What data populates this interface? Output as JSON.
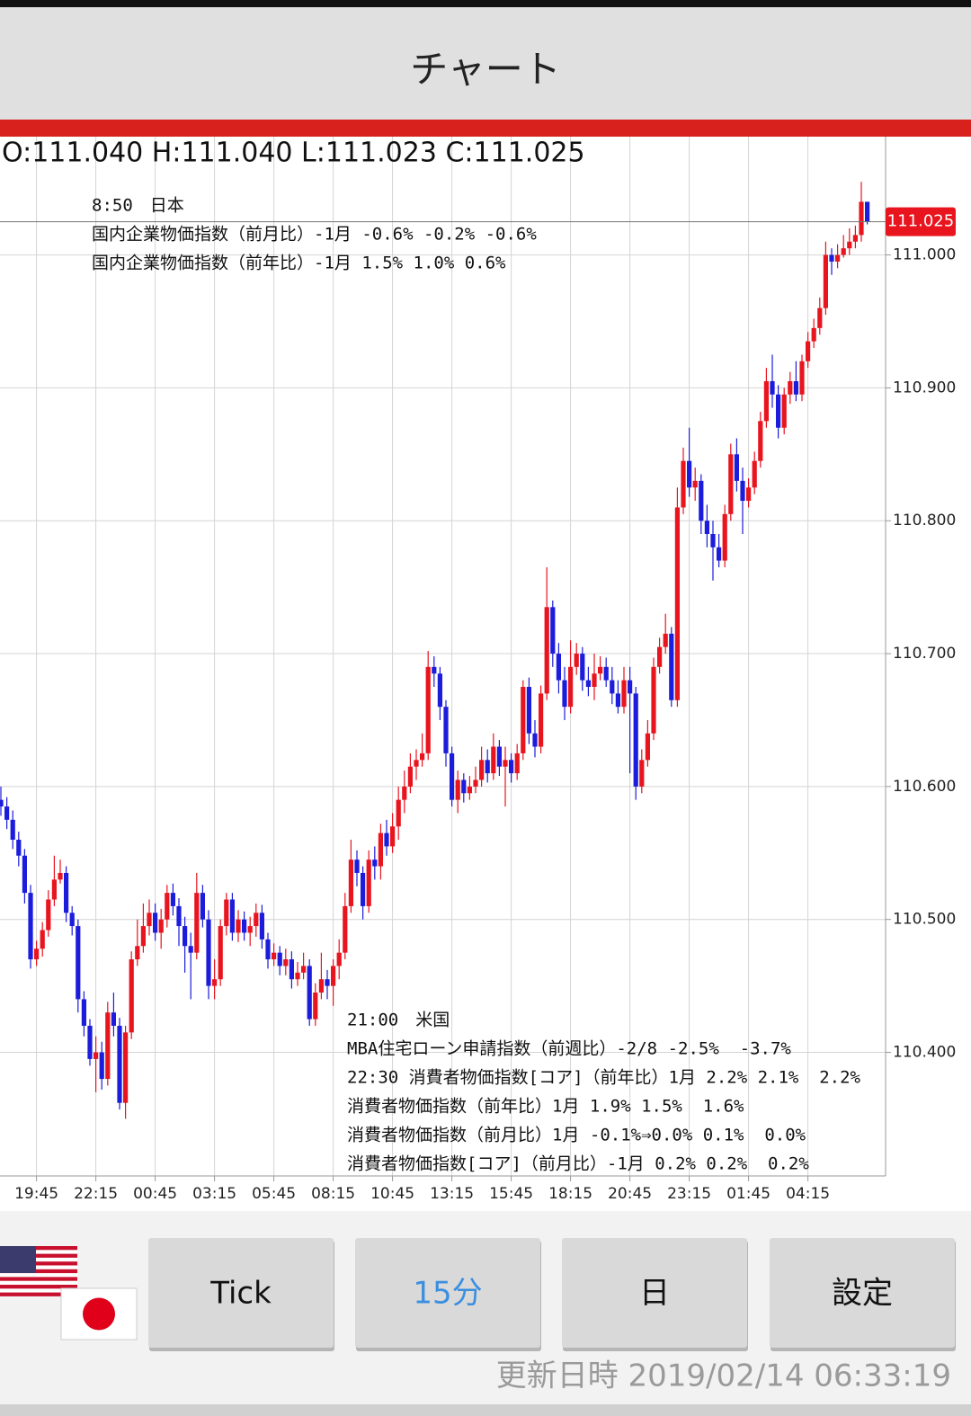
{
  "app": {
    "title": "チャート",
    "buttons": [
      "Tick",
      "15分",
      "日",
      "設定"
    ],
    "updated": "更新日時 2019/02/14 06:33:19"
  },
  "chart_data": {
    "type": "candlestick",
    "ohlc_header": "O:111.040 H:111.040 L:111.023 C:111.025",
    "up_color": "#e8141e",
    "down_color": "#1c1cdc",
    "grid": true,
    "ylim": [
      110.307,
      111.089
    ],
    "yticks": [
      {
        "value": 110.4,
        "label": "110.400"
      },
      {
        "value": 110.5,
        "label": "110.500"
      },
      {
        "value": 110.6,
        "label": "110.600"
      },
      {
        "value": 110.7,
        "label": "110.700"
      },
      {
        "value": 110.8,
        "label": "110.800"
      },
      {
        "value": 110.9,
        "label": "110.900"
      },
      {
        "value": 111.0,
        "label": "111.000"
      }
    ],
    "categories": [
      null,
      null,
      null,
      null,
      null,
      null,
      "19:45",
      null,
      null,
      null,
      null,
      null,
      null,
      null,
      null,
      null,
      "22:15",
      null,
      null,
      null,
      null,
      null,
      null,
      null,
      null,
      null,
      "00:45",
      null,
      null,
      null,
      null,
      null,
      null,
      null,
      null,
      null,
      "03:15",
      null,
      null,
      null,
      null,
      null,
      null,
      null,
      null,
      null,
      "05:45",
      null,
      null,
      null,
      null,
      null,
      null,
      null,
      null,
      null,
      "08:15",
      null,
      null,
      null,
      null,
      null,
      null,
      null,
      null,
      null,
      "10:45",
      null,
      null,
      null,
      null,
      null,
      null,
      null,
      null,
      null,
      "13:15",
      null,
      null,
      null,
      null,
      null,
      null,
      null,
      null,
      null,
      "15:45",
      null,
      null,
      null,
      null,
      null,
      null,
      null,
      null,
      null,
      "18:15",
      null,
      null,
      null,
      null,
      null,
      null,
      null,
      null,
      null,
      "20:45",
      null,
      null,
      null,
      null,
      null,
      null,
      null,
      null,
      null,
      "23:15",
      null,
      null,
      null,
      null,
      null,
      null,
      null,
      null,
      null,
      "01:45",
      null,
      null,
      null,
      null,
      null,
      null,
      null,
      null,
      null,
      "04:15",
      null,
      null,
      null,
      null,
      null,
      null,
      null,
      null,
      null,
      null
    ],
    "open": [
      110.59,
      110.585,
      110.575,
      110.56,
      110.548,
      110.52,
      110.47,
      110.478,
      110.492,
      110.515,
      110.53,
      110.535,
      110.505,
      110.495,
      110.44,
      110.42,
      110.395,
      110.4,
      110.38,
      110.43,
      110.42,
      110.362,
      110.415,
      110.47,
      110.48,
      110.495,
      110.505,
      110.49,
      110.5,
      110.52,
      110.51,
      110.495,
      110.48,
      110.475,
      110.52,
      110.5,
      110.45,
      110.455,
      110.495,
      110.515,
      110.49,
      110.5,
      110.49,
      110.495,
      110.505,
      110.485,
      110.47,
      110.475,
      110.465,
      110.47,
      110.455,
      110.46,
      110.465,
      110.425,
      110.445,
      110.455,
      110.45,
      110.465,
      110.475,
      110.51,
      110.545,
      110.535,
      110.51,
      110.545,
      110.54,
      110.565,
      110.555,
      110.57,
      110.59,
      110.6,
      110.615,
      110.62,
      110.625,
      110.69,
      110.685,
      110.66,
      110.625,
      110.59,
      110.605,
      110.595,
      110.6,
      110.605,
      110.62,
      110.61,
      110.63,
      110.615,
      110.62,
      110.61,
      110.625,
      110.675,
      110.64,
      110.63,
      110.67,
      110.735,
      110.7,
      110.68,
      110.66,
      110.69,
      110.7,
      110.68,
      110.675,
      110.685,
      110.69,
      110.68,
      110.67,
      110.66,
      110.68,
      110.67,
      110.6,
      110.62,
      110.64,
      110.69,
      110.705,
      110.715,
      110.665,
      110.81,
      110.845,
      110.825,
      110.83,
      110.8,
      110.79,
      110.78,
      110.77,
      110.805,
      110.85,
      110.83,
      110.815,
      110.825,
      110.845,
      110.875,
      110.905,
      110.895,
      110.87,
      110.895,
      110.905,
      110.895,
      110.92,
      110.935,
      110.945,
      110.96,
      111.0,
      110.995,
      111.0,
      111.005,
      111.01,
      111.015,
      111.04
    ],
    "high": [
      110.6,
      110.592,
      110.582,
      110.566,
      110.553,
      110.526,
      110.484,
      110.498,
      110.522,
      110.548,
      110.545,
      110.54,
      110.51,
      110.5,
      110.446,
      110.425,
      110.412,
      110.408,
      110.438,
      110.445,
      110.426,
      110.42,
      110.476,
      110.5,
      110.512,
      110.515,
      110.512,
      110.508,
      110.526,
      110.527,
      110.516,
      110.502,
      110.49,
      110.535,
      110.526,
      110.507,
      110.47,
      110.5,
      110.52,
      110.52,
      110.507,
      110.506,
      110.502,
      110.512,
      110.511,
      110.49,
      110.482,
      110.48,
      110.478,
      110.476,
      110.468,
      110.475,
      110.47,
      110.452,
      110.475,
      110.462,
      110.47,
      110.485,
      110.52,
      110.56,
      110.552,
      110.54,
      110.552,
      110.555,
      110.572,
      110.575,
      110.58,
      110.6,
      110.612,
      110.625,
      110.628,
      110.64,
      110.702,
      110.698,
      110.69,
      110.665,
      110.63,
      110.612,
      110.61,
      110.608,
      110.615,
      110.63,
      110.628,
      110.64,
      110.635,
      110.63,
      110.625,
      110.632,
      110.68,
      110.682,
      110.65,
      110.676,
      110.765,
      110.74,
      110.708,
      110.69,
      110.71,
      110.708,
      110.705,
      110.69,
      110.7,
      110.698,
      110.697,
      110.69,
      110.68,
      110.69,
      110.69,
      110.675,
      110.628,
      110.65,
      110.697,
      110.712,
      110.73,
      110.72,
      110.825,
      110.855,
      110.87,
      110.84,
      110.835,
      110.812,
      110.8,
      110.79,
      110.812,
      110.858,
      110.862,
      110.84,
      110.832,
      110.852,
      110.882,
      110.915,
      110.925,
      110.902,
      110.9,
      110.912,
      110.92,
      110.925,
      110.942,
      110.952,
      110.968,
      111.01,
      111.005,
      111.008,
      111.015,
      111.02,
      111.022,
      111.055,
      111.04
    ],
    "low": [
      110.578,
      110.568,
      110.553,
      110.54,
      110.512,
      110.463,
      110.465,
      110.472,
      110.487,
      110.51,
      110.527,
      110.498,
      110.488,
      110.43,
      110.412,
      110.39,
      110.37,
      110.372,
      110.375,
      110.412,
      110.357,
      110.35,
      110.41,
      110.465,
      110.475,
      110.488,
      110.484,
      110.478,
      110.494,
      110.503,
      110.48,
      110.46,
      110.44,
      110.47,
      110.494,
      110.44,
      110.44,
      110.45,
      110.488,
      110.484,
      110.483,
      110.484,
      110.48,
      110.487,
      110.478,
      110.463,
      110.465,
      110.458,
      110.458,
      110.448,
      110.45,
      110.455,
      110.42,
      110.42,
      110.44,
      110.44,
      110.435,
      110.455,
      110.47,
      110.505,
      110.525,
      110.5,
      110.505,
      110.53,
      110.53,
      110.548,
      110.55,
      110.56,
      110.58,
      110.595,
      110.605,
      110.615,
      110.62,
      110.675,
      110.65,
      110.615,
      110.585,
      110.58,
      110.588,
      110.59,
      110.595,
      110.6,
      110.603,
      110.605,
      110.608,
      110.585,
      110.603,
      110.605,
      110.62,
      110.632,
      110.622,
      110.625,
      110.665,
      110.69,
      110.67,
      110.65,
      110.655,
      110.684,
      110.672,
      110.668,
      110.665,
      110.68,
      110.675,
      110.662,
      110.655,
      110.655,
      110.61,
      110.59,
      110.595,
      110.615,
      110.635,
      110.685,
      110.7,
      110.66,
      110.66,
      110.805,
      110.818,
      110.815,
      110.79,
      110.78,
      110.755,
      110.765,
      110.765,
      110.8,
      110.822,
      110.79,
      110.81,
      110.82,
      110.84,
      110.87,
      110.885,
      110.862,
      110.865,
      110.888,
      110.89,
      110.89,
      110.915,
      110.93,
      110.94,
      110.955,
      110.985,
      110.99,
      110.998,
      111.0,
      111.005,
      111.01,
      111.023
    ],
    "close": [
      110.585,
      110.575,
      110.56,
      110.548,
      110.52,
      110.47,
      110.478,
      110.492,
      110.515,
      110.53,
      110.535,
      110.505,
      110.495,
      110.44,
      110.42,
      110.395,
      110.4,
      110.38,
      110.43,
      110.42,
      110.362,
      110.415,
      110.47,
      110.48,
      110.495,
      110.505,
      110.49,
      110.5,
      110.52,
      110.51,
      110.495,
      110.48,
      110.475,
      110.52,
      110.5,
      110.45,
      110.455,
      110.495,
      110.515,
      110.49,
      110.5,
      110.49,
      110.495,
      110.505,
      110.485,
      110.47,
      110.475,
      110.465,
      110.47,
      110.455,
      110.46,
      110.465,
      110.425,
      110.445,
      110.455,
      110.45,
      110.465,
      110.475,
      110.51,
      110.545,
      110.535,
      110.51,
      110.545,
      110.54,
      110.565,
      110.555,
      110.57,
      110.59,
      110.6,
      110.615,
      110.62,
      110.625,
      110.69,
      110.685,
      110.66,
      110.625,
      110.59,
      110.605,
      110.595,
      110.6,
      110.605,
      110.62,
      110.61,
      110.63,
      110.615,
      110.62,
      110.61,
      110.625,
      110.675,
      110.64,
      110.63,
      110.67,
      110.735,
      110.7,
      110.68,
      110.66,
      110.69,
      110.7,
      110.68,
      110.675,
      110.685,
      110.69,
      110.68,
      110.67,
      110.66,
      110.68,
      110.67,
      110.6,
      110.62,
      110.64,
      110.69,
      110.705,
      110.715,
      110.665,
      110.81,
      110.845,
      110.825,
      110.83,
      110.8,
      110.79,
      110.78,
      110.77,
      110.805,
      110.85,
      110.83,
      110.815,
      110.825,
      110.845,
      110.875,
      110.905,
      110.895,
      110.87,
      110.895,
      110.905,
      110.895,
      110.92,
      110.935,
      110.945,
      110.96,
      111.0,
      110.995,
      111.0,
      111.005,
      111.01,
      111.015,
      111.04,
      111.025
    ],
    "annotations": [
      {
        "lines": [
          "8:50　日本",
          "国内企業物価指数（前月比）-1月 -0.6% -0.2% -0.6%",
          "国内企業物価指数（前年比）-1月 1.5% 1.0% 0.6%"
        ]
      },
      {
        "lines": [
          "21:00　米国",
          "MBA住宅ローン申請指数（前週比）-2/8 -2.5%  -3.7%",
          "22:30 消費者物価指数[コア]（前年比）1月 2.2% 2.1%  2.2%",
          "消費者物価指数（前年比）1月 1.9% 1.5%  1.6%",
          "消費者物価指数（前月比）1月 -0.1%⇒0.0% 0.1%  0.0%",
          "消費者物価指数[コア]（前月比）-1月 0.2% 0.2%  0.2%"
        ]
      }
    ]
  }
}
